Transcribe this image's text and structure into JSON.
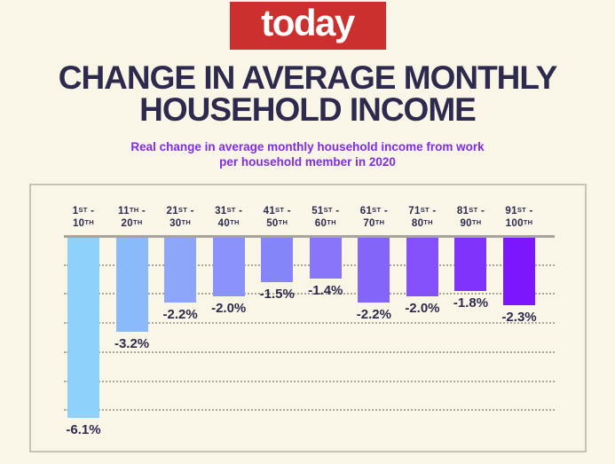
{
  "header": {
    "logo_text": "today",
    "title_line1": "CHANGE IN AVERAGE MONTHLY",
    "title_line2": "HOUSEHOLD INCOME",
    "subtitle_line1": "Real change in average monthly household income from work",
    "subtitle_line2": "per household member in 2020"
  },
  "colors": {
    "background": "#FAF6E7",
    "logo_red": "#CB302E",
    "logo_text_white": "#FFFFFF",
    "title_navy": "#2D2A4E",
    "subtitle_purple": "#7F2BEA",
    "axis_gray": "#A8A49B",
    "panel_border": "#C6C3B6",
    "bar_colors": [
      "#8ED1FB",
      "#8ABAFA",
      "#8DA6FA",
      "#8992F9",
      "#8584F9",
      "#8776F9",
      "#8365F9",
      "#8450FA",
      "#8033FB",
      "#7B16FD"
    ]
  },
  "chart_data": {
    "type": "bar",
    "title": "Change in average monthly household income",
    "subtitle": "Real change in average monthly household income from work per household member in 2020",
    "unit": "%",
    "orientation": "vertical-negative",
    "categories": [
      {
        "start": "1",
        "start_suffix": "ST",
        "end": "10",
        "end_suffix": "TH"
      },
      {
        "start": "11",
        "start_suffix": "TH",
        "end": "20",
        "end_suffix": "TH"
      },
      {
        "start": "21",
        "start_suffix": "ST",
        "end": "30",
        "end_suffix": "TH"
      },
      {
        "start": "31",
        "start_suffix": "ST",
        "end": "40",
        "end_suffix": "TH"
      },
      {
        "start": "41",
        "start_suffix": "ST",
        "end": "50",
        "end_suffix": "TH"
      },
      {
        "start": "51",
        "start_suffix": "ST",
        "end": "60",
        "end_suffix": "TH"
      },
      {
        "start": "61",
        "start_suffix": "ST",
        "end": "70",
        "end_suffix": "TH"
      },
      {
        "start": "71",
        "start_suffix": "ST",
        "end": "80",
        "end_suffix": "TH"
      },
      {
        "start": "81",
        "start_suffix": "ST",
        "end": "90",
        "end_suffix": "TH"
      },
      {
        "start": "91",
        "start_suffix": "ST",
        "end": "100",
        "end_suffix": "TH"
      }
    ],
    "category_labels": [
      "1st - 10th",
      "11th - 20th",
      "21st - 30th",
      "31st - 40th",
      "41st - 50th",
      "51st - 60th",
      "61st - 70th",
      "71st - 80th",
      "81st - 90th",
      "91st - 100th"
    ],
    "values": [
      -6.1,
      -3.2,
      -2.2,
      -2.0,
      -1.5,
      -1.4,
      -2.2,
      -2.0,
      -1.8,
      -2.3
    ],
    "value_labels": [
      "-6.1%",
      "-3.2%",
      "-2.2%",
      "-2.0%",
      "-1.5%",
      "-1.4%",
      "-2.2%",
      "-2.0%",
      "-1.8%",
      "-2.3%"
    ],
    "ylim": [
      -7,
      0
    ],
    "gridlines": {
      "visible": true,
      "style": "dotted",
      "interval": 1,
      "count": 6
    },
    "legend": "none",
    "y_axis_tick_labels": "none"
  }
}
